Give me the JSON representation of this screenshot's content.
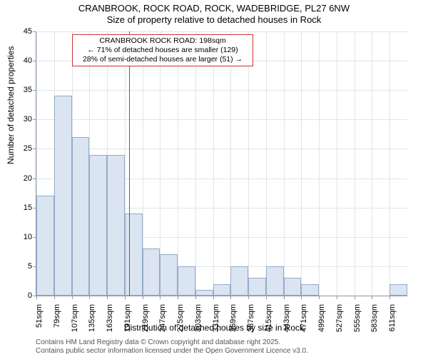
{
  "chart": {
    "type": "histogram",
    "title_line1": "CRANBROOK, ROCK ROAD, ROCK, WADEBRIDGE, PL27 6NW",
    "title_line2": "Size of property relative to detached houses in Rock",
    "title_fontsize": 13,
    "xlabel": "Distribution of detached houses by size in Rock",
    "ylabel": "Number of detached properties",
    "label_fontsize": 12,
    "tick_fontsize": 11,
    "background_color": "#ffffff",
    "grid_color": "#e0e4ea",
    "axis_color": "#8898aa",
    "bar_fill": "#dbe4f1",
    "bar_stroke": "#94abc9",
    "ref_line_color": "#cc3333",
    "ylim": [
      0,
      45
    ],
    "ytick_step": 5,
    "yticks": [
      0,
      5,
      10,
      15,
      20,
      25,
      30,
      35,
      40,
      45
    ],
    "xticks": [
      "51sqm",
      "79sqm",
      "107sqm",
      "135sqm",
      "163sqm",
      "191sqm",
      "219sqm",
      "247sqm",
      "275sqm",
      "303sqm",
      "331sqm",
      "359sqm",
      "387sqm",
      "415sqm",
      "443sqm",
      "471sqm",
      "499sqm",
      "527sqm",
      "555sqm",
      "583sqm",
      "611sqm"
    ],
    "values": [
      17,
      34,
      27,
      24,
      24,
      14,
      8,
      7,
      5,
      1,
      2,
      5,
      3,
      5,
      3,
      2,
      0,
      0,
      0,
      0,
      2
    ],
    "bar_width": 1.0,
    "ref_line_x": 198,
    "annotation": {
      "line1": "CRANBROOK ROCK ROAD: 198sqm",
      "line2": "← 71% of detached houses are smaller (129)",
      "line3": "28% of semi-detached houses are larger (51) →",
      "border_color": "#cc3333",
      "fontsize": 10.5
    }
  },
  "footer": {
    "line1": "Contains HM Land Registry data © Crown copyright and database right 2025.",
    "line2": "Contains public sector information licensed under the Open Government Licence v3.0.",
    "fontsize": 10,
    "color": "#555555"
  }
}
